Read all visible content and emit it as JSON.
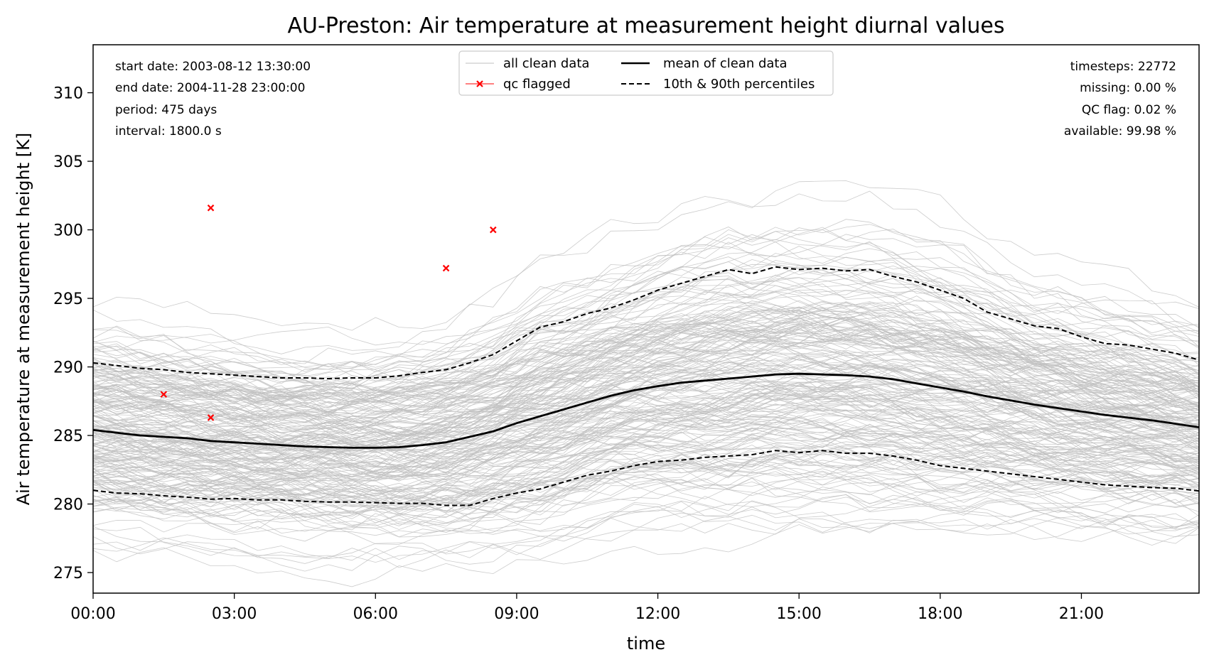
{
  "chart_data": {
    "type": "line",
    "title": "AU-Preston: Air temperature at measurement height diurnal values",
    "xlabel": "time",
    "ylabel": "Air temperature at measurement height [K]",
    "xlim": [
      0,
      23.5
    ],
    "ylim": [
      273.5,
      313.5
    ],
    "x_ticks": [
      0,
      3,
      6,
      9,
      12,
      15,
      18,
      21
    ],
    "x_tick_labels": [
      "00:00",
      "03:00",
      "06:00",
      "09:00",
      "12:00",
      "15:00",
      "18:00",
      "21:00"
    ],
    "y_ticks": [
      275,
      280,
      285,
      290,
      295,
      300,
      305,
      310
    ],
    "y_tick_labels": [
      "275",
      "280",
      "285",
      "290",
      "295",
      "300",
      "305",
      "310"
    ],
    "grid": false,
    "legend": {
      "placement": "top-center",
      "entries": [
        "all clean data",
        "qc flagged",
        "mean of clean data",
        "10th & 90th percentiles"
      ]
    },
    "info_left": [
      "start date: 2003-08-12 13:30:00",
      "end date: 2004-11-28 23:00:00",
      "period: 475 days",
      "interval: 1800.0 s"
    ],
    "info_right": [
      "timesteps: 22772",
      "missing: 0.00 %",
      "QC flag: 0.02 %",
      "available: 99.98 %"
    ],
    "x": [
      0,
      0.5,
      1,
      1.5,
      2,
      2.5,
      3,
      3.5,
      4,
      4.5,
      5,
      5.5,
      6,
      6.5,
      7,
      7.5,
      8,
      8.5,
      9,
      9.5,
      10,
      10.5,
      11,
      11.5,
      12,
      12.5,
      13,
      13.5,
      14,
      14.5,
      15,
      15.5,
      16,
      16.5,
      17,
      17.5,
      18,
      18.5,
      19,
      19.5,
      20,
      20.5,
      21,
      21.5,
      22,
      22.5,
      23,
      23.5
    ],
    "series": [
      {
        "name": "mean of clean data",
        "color": "#000000",
        "style": "solid",
        "values": [
          285.4,
          285.2,
          285.0,
          284.9,
          284.8,
          284.6,
          284.5,
          284.4,
          284.3,
          284.2,
          284.15,
          284.1,
          284.1,
          284.15,
          284.3,
          284.5,
          284.9,
          285.3,
          285.9,
          286.4,
          286.9,
          287.4,
          287.9,
          288.3,
          288.6,
          288.85,
          289.0,
          289.15,
          289.3,
          289.45,
          289.5,
          289.45,
          289.4,
          289.3,
          289.1,
          288.8,
          288.5,
          288.2,
          287.85,
          287.55,
          287.25,
          287.0,
          286.75,
          286.5,
          286.3,
          286.1,
          285.85,
          285.6
        ]
      },
      {
        "name": "10th & 90th percentiles",
        "color": "#000000",
        "style": "dashed",
        "values": [
          290.3,
          290.1,
          289.9,
          289.8,
          289.6,
          289.5,
          289.4,
          289.3,
          289.2,
          289.2,
          289.15,
          289.2,
          289.2,
          289.35,
          289.6,
          289.8,
          290.3,
          290.9,
          291.9,
          292.9,
          293.3,
          293.9,
          294.3,
          294.9,
          295.6,
          296.1,
          296.6,
          297.1,
          296.8,
          297.3,
          297.1,
          297.2,
          297.0,
          297.1,
          296.6,
          296.2,
          295.6,
          295.0,
          294.0,
          293.5,
          293.0,
          292.8,
          292.2,
          291.7,
          291.6,
          291.3,
          291.0,
          290.5
        ]
      },
      {
        "name": "10th & 90th percentiles",
        "color": "#000000",
        "style": "dashed",
        "values": [
          281.0,
          280.8,
          280.75,
          280.6,
          280.5,
          280.35,
          280.4,
          280.3,
          280.3,
          280.2,
          280.15,
          280.15,
          280.1,
          280.05,
          280.05,
          279.9,
          279.9,
          280.4,
          280.8,
          281.1,
          281.6,
          282.1,
          282.4,
          282.8,
          283.1,
          283.2,
          283.4,
          283.5,
          283.6,
          283.9,
          283.75,
          283.9,
          283.7,
          283.7,
          283.5,
          283.2,
          282.8,
          282.6,
          282.4,
          282.2,
          282.0,
          281.8,
          281.6,
          281.4,
          281.3,
          281.2,
          281.15,
          280.95
        ]
      }
    ],
    "qc_flagged": {
      "name": "qc flagged",
      "color": "#ff0000",
      "points": [
        {
          "x": 1.5,
          "y": 288.0
        },
        {
          "x": 2.5,
          "y": 286.3
        },
        {
          "x": 2.5,
          "y": 301.6
        },
        {
          "x": 7.5,
          "y": 297.2
        },
        {
          "x": 8.5,
          "y": 300.0
        }
      ]
    },
    "clean_data_color": "#bfbfbf"
  }
}
